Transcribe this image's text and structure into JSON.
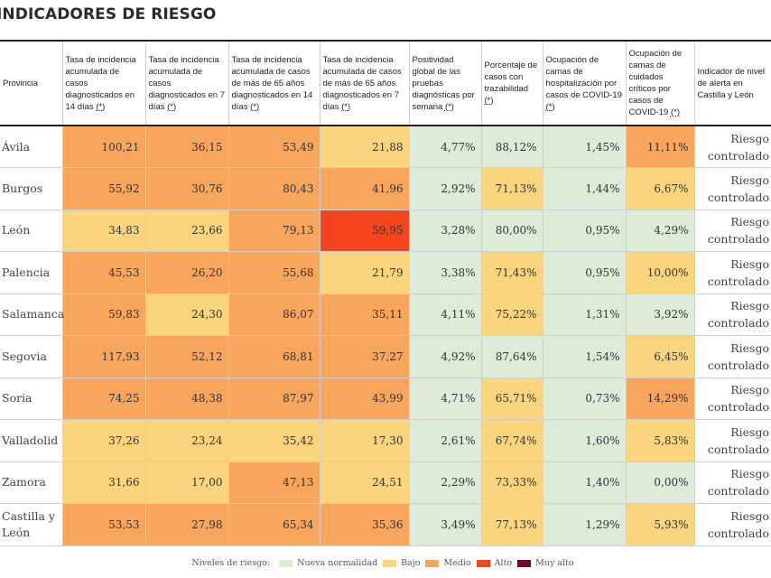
{
  "title": "INDICADORES DE RIESGO",
  "colors": {
    "nueva": "#dcecd8",
    "bajo": "#fbd57d",
    "medio": "#f9a55c",
    "alto": "#f5451e",
    "muy_alto": "#6d0d2d",
    "none": "#ffffff"
  },
  "headers": [
    {
      "text": "Provincia",
      "ast": ""
    },
    {
      "text": "Tasa de incidencia acumulada de casos diagnosticados en 14 días ",
      "ast": "(*)"
    },
    {
      "text": "Tasa de incidencia acumulada de casos diagnosticados en 7 días ",
      "ast": "(*)"
    },
    {
      "text": "Tasa de incidencia acumulada de casos de más de 65 años diagnosticados en 14 días ",
      "ast": "(*)"
    },
    {
      "text": "Tasa de incidencia acumulada de casos de más de 65 años diagnosticados en 7 días ",
      "ast": "(*)"
    },
    {
      "text": "Positividad global de las pruebas diagnósticas por semana ",
      "ast": "(*)"
    },
    {
      "text": "Porcentaje de casos con trazabilidad ",
      "ast": "(*)"
    },
    {
      "text": "Ocupación de camas de hospitalización por casos de COVID-19 ",
      "ast": "(*)"
    },
    {
      "text": "Ocupación de camas de cuidados críticos por casos de COVID-19 ",
      "ast": "(*)"
    },
    {
      "text": "Indicador de nivel de alerta en Castilla y León",
      "ast": ""
    }
  ],
  "rows": [
    {
      "province": "Ávila",
      "values": [
        "100,21",
        "36,15",
        "53,49",
        "21,88",
        "4,77%",
        "88,12%",
        "1,45%",
        "11,11%"
      ],
      "levels": [
        "medio",
        "medio",
        "medio",
        "bajo",
        "nueva",
        "nueva",
        "nueva",
        "medio"
      ],
      "alert": "Riesgo controlado"
    },
    {
      "province": "Burgos",
      "values": [
        "55,92",
        "30,76",
        "80,43",
        "41,96",
        "2,92%",
        "71,13%",
        "1,44%",
        "6,67%"
      ],
      "levels": [
        "medio",
        "medio",
        "medio",
        "medio",
        "nueva",
        "bajo",
        "nueva",
        "bajo"
      ],
      "alert": "Riesgo controlado"
    },
    {
      "province": "León",
      "values": [
        "34,83",
        "23,66",
        "79,13",
        "59,95",
        "3,28%",
        "80,00%",
        "0,95%",
        "4,29%"
      ],
      "levels": [
        "bajo",
        "bajo",
        "medio",
        "alto",
        "nueva",
        "nueva",
        "nueva",
        "nueva"
      ],
      "alert": "Riesgo controlado"
    },
    {
      "province": "Palencia",
      "values": [
        "45,53",
        "26,20",
        "55,68",
        "21,79",
        "3,38%",
        "71,43%",
        "0,95%",
        "10,00%"
      ],
      "levels": [
        "medio",
        "medio",
        "medio",
        "bajo",
        "nueva",
        "bajo",
        "nueva",
        "bajo"
      ],
      "alert": "Riesgo controlado"
    },
    {
      "province": "Salamanca",
      "values": [
        "59,83",
        "24,30",
        "86,07",
        "35,11",
        "4,11%",
        "75,22%",
        "1,31%",
        "3,92%"
      ],
      "levels": [
        "medio",
        "bajo",
        "medio",
        "medio",
        "nueva",
        "bajo",
        "nueva",
        "nueva"
      ],
      "alert": "Riesgo controlado"
    },
    {
      "province": "Segovia",
      "values": [
        "117,93",
        "52,12",
        "68,81",
        "37,27",
        "4,92%",
        "87,64%",
        "1,54%",
        "6,45%"
      ],
      "levels": [
        "medio",
        "medio",
        "medio",
        "medio",
        "nueva",
        "nueva",
        "nueva",
        "bajo"
      ],
      "alert": "Riesgo controlado"
    },
    {
      "province": "Soria",
      "values": [
        "74,25",
        "48,38",
        "87,97",
        "43,99",
        "4,71%",
        "65,71%",
        "0,73%",
        "14,29%"
      ],
      "levels": [
        "medio",
        "medio",
        "medio",
        "medio",
        "nueva",
        "bajo",
        "nueva",
        "medio"
      ],
      "alert": "Riesgo controlado"
    },
    {
      "province": "Valladolid",
      "values": [
        "37,26",
        "23,24",
        "35,42",
        "17,30",
        "2,61%",
        "67,74%",
        "1,60%",
        "5,83%"
      ],
      "levels": [
        "bajo",
        "bajo",
        "bajo",
        "bajo",
        "nueva",
        "bajo",
        "nueva",
        "bajo"
      ],
      "alert": "Riesgo controlado"
    },
    {
      "province": "Zamora",
      "values": [
        "31,66",
        "17,00",
        "47,13",
        "24,51",
        "2,29%",
        "73,33%",
        "1,40%",
        "0,00%"
      ],
      "levels": [
        "bajo",
        "bajo",
        "medio",
        "bajo",
        "nueva",
        "bajo",
        "nueva",
        "nueva"
      ],
      "alert": "Riesgo controlado"
    },
    {
      "province": "Castilla y León",
      "values": [
        "53,53",
        "27,98",
        "65,34",
        "35,36",
        "3,49%",
        "77,13%",
        "1,29%",
        "5,93%"
      ],
      "levels": [
        "medio",
        "medio",
        "medio",
        "medio",
        "nueva",
        "bajo",
        "nueva",
        "bajo"
      ],
      "alert": "Riesgo controlado"
    }
  ],
  "legend": {
    "label": "Niveles de riesgo:",
    "items": [
      {
        "name": "Nueva normalidad",
        "color": "#dcecd8"
      },
      {
        "name": "Bajo",
        "color": "#fbd57d"
      },
      {
        "name": "Medio",
        "color": "#f9a55c"
      },
      {
        "name": "Alto",
        "color": "#f5451e"
      },
      {
        "name": "Muy alto",
        "color": "#6d0d2d"
      }
    ]
  }
}
